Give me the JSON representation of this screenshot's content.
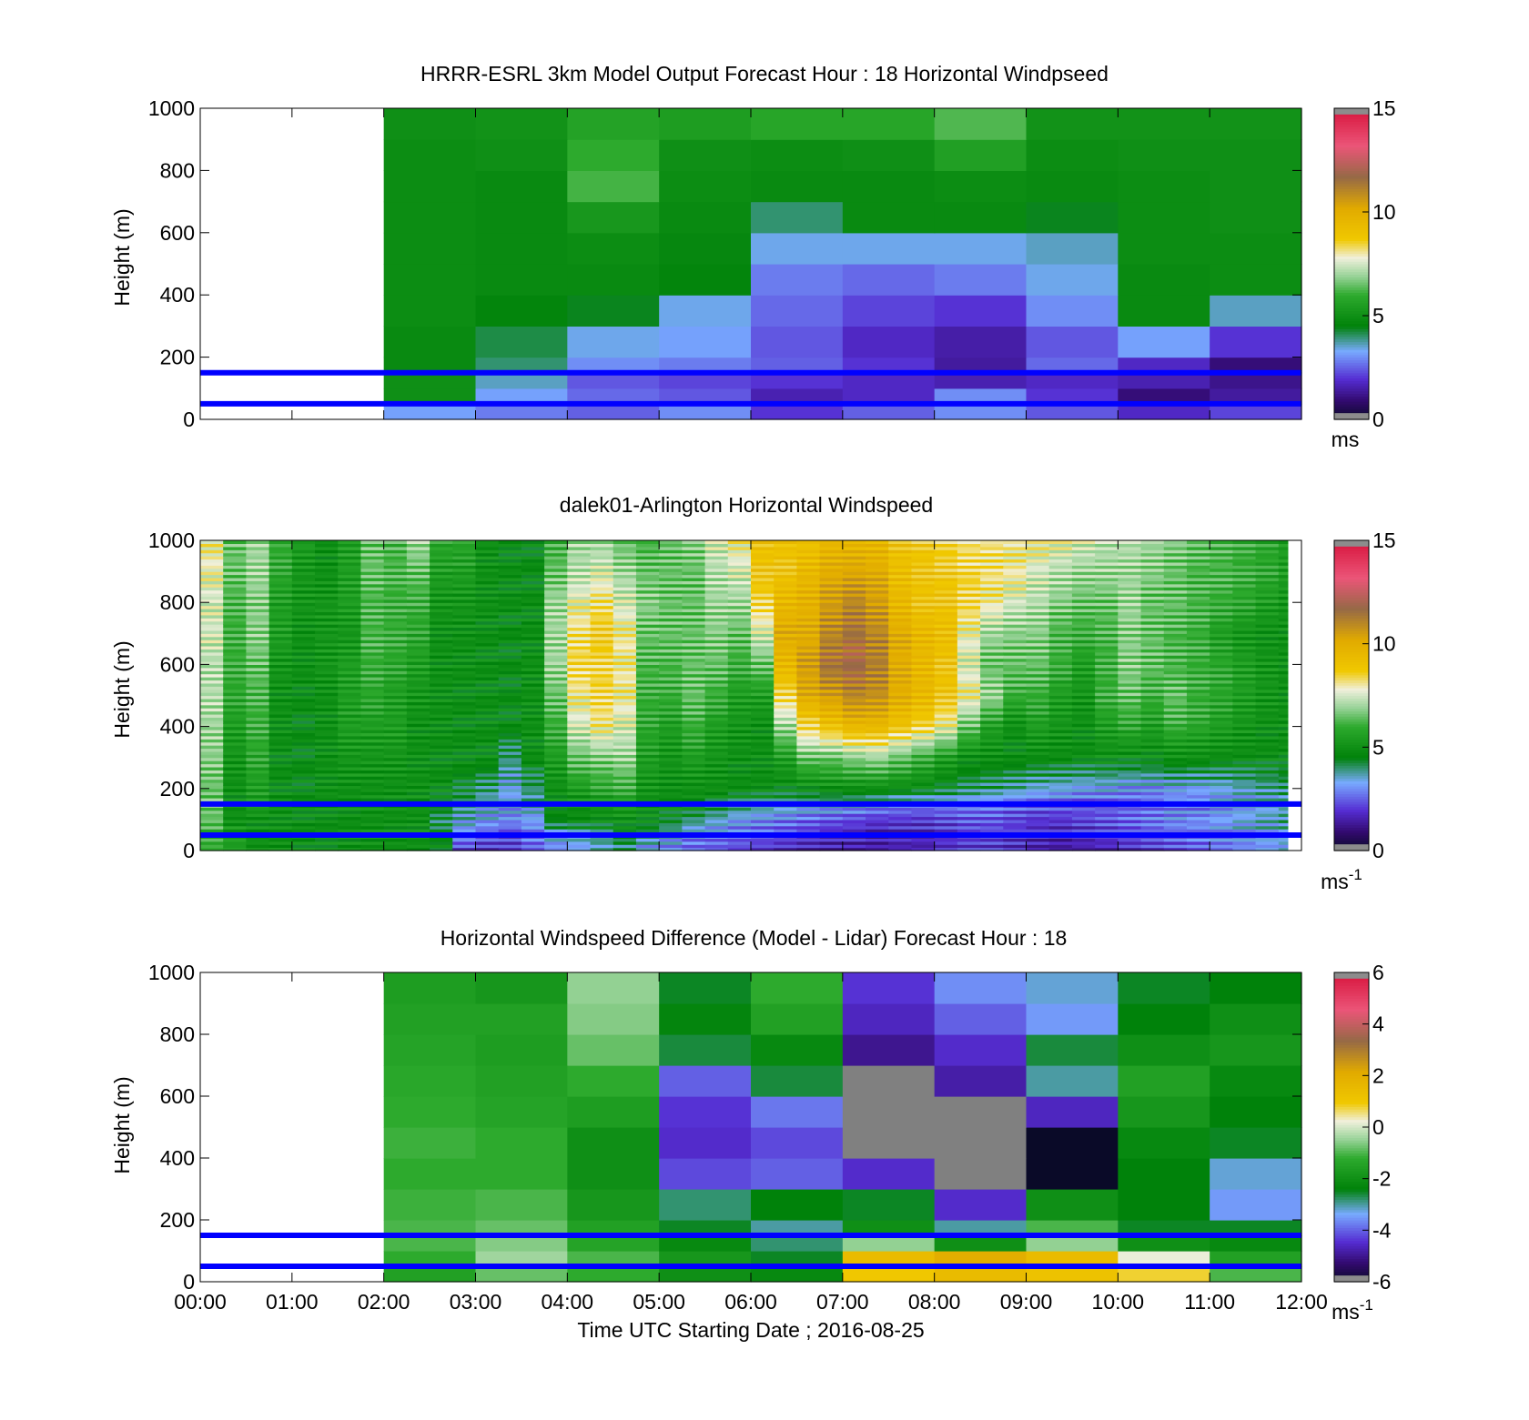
{
  "figure": {
    "xlabel": "Time UTC  Starting Date ; 2016-08-25",
    "x_ticks": [
      "00:00",
      "01:00",
      "02:00",
      "03:00",
      "04:00",
      "05:00",
      "06:00",
      "07:00",
      "08:00",
      "09:00",
      "10:00",
      "11:00",
      "12:00"
    ]
  },
  "chart_data": [
    {
      "type": "heatmap",
      "title": "HRRR-ESRL 3km Model Output   Forecast Hour : 18 Horizontal Windpseed",
      "ylabel": "Height (m)",
      "ylim": [
        0,
        1000
      ],
      "y_ticks": [
        "0",
        "200",
        "400",
        "600",
        "800",
        "1000"
      ],
      "xlim_hours": [
        0,
        12
      ],
      "colorbar": {
        "min": 0,
        "max": 15,
        "ticks": [
          "0",
          "5",
          "10",
          "15"
        ],
        "unit": "ms"
      },
      "reference_lines_m": [
        150,
        50
      ],
      "reference_line_color": "#0000ff",
      "x_bins_hours": [
        [
          2,
          3
        ],
        [
          3,
          4
        ],
        [
          4,
          5
        ],
        [
          5,
          6
        ],
        [
          6,
          7
        ],
        [
          7,
          8
        ],
        [
          8,
          9
        ],
        [
          9,
          10
        ],
        [
          10,
          11
        ],
        [
          11,
          12
        ]
      ],
      "y_bins_m": [
        [
          0,
          50
        ],
        [
          50,
          100
        ],
        [
          100,
          150
        ],
        [
          150,
          200
        ],
        [
          200,
          300
        ],
        [
          300,
          400
        ],
        [
          400,
          500
        ],
        [
          500,
          600
        ],
        [
          600,
          700
        ],
        [
          700,
          800
        ],
        [
          800,
          900
        ],
        [
          900,
          1000
        ]
      ],
      "values": [
        [
          3.2,
          2.8,
          2.5,
          3.0,
          2.0,
          2.5,
          3.0,
          2.4,
          1.8,
          2.2
        ],
        [
          5.0,
          3.2,
          2.6,
          2.4,
          1.6,
          1.8,
          3.0,
          2.0,
          1.0,
          1.4
        ],
        [
          5.0,
          3.6,
          2.4,
          2.2,
          2.0,
          1.8,
          1.6,
          1.8,
          1.6,
          1.2
        ],
        [
          4.8,
          4.0,
          3.0,
          2.8,
          2.5,
          2.0,
          1.4,
          2.6,
          1.8,
          1.0
        ],
        [
          4.8,
          4.2,
          3.4,
          3.2,
          2.4,
          1.8,
          1.5,
          2.4,
          3.2,
          2.0
        ],
        [
          4.9,
          4.6,
          4.4,
          3.4,
          2.6,
          2.2,
          2.0,
          3.0,
          4.8,
          3.6
        ],
        [
          4.9,
          4.8,
          4.8,
          4.6,
          2.8,
          2.6,
          2.8,
          3.4,
          4.8,
          4.9
        ],
        [
          4.9,
          4.8,
          4.9,
          4.7,
          3.4,
          3.4,
          3.4,
          3.6,
          4.9,
          4.9
        ],
        [
          4.9,
          4.8,
          5.3,
          4.8,
          4.0,
          4.8,
          4.8,
          4.4,
          4.9,
          5.0
        ],
        [
          4.9,
          4.8,
          6.2,
          4.9,
          4.8,
          4.8,
          4.9,
          4.8,
          4.9,
          5.0
        ],
        [
          4.9,
          5.0,
          6.0,
          5.0,
          4.9,
          5.0,
          5.6,
          4.9,
          5.0,
          5.0
        ],
        [
          5.0,
          5.1,
          5.7,
          5.5,
          5.8,
          5.8,
          6.3,
          5.1,
          5.1,
          5.1
        ]
      ]
    },
    {
      "type": "heatmap",
      "title": "dalek01-Arlington  Horizontal Windspeed",
      "ylabel": "Height (m)",
      "ylim": [
        0,
        1000
      ],
      "y_ticks": [
        "0",
        "200",
        "400",
        "600",
        "800",
        "1000"
      ],
      "xlim_hours": [
        0,
        12
      ],
      "colorbar": {
        "min": 0,
        "max": 15,
        "ticks": [
          "0",
          "5",
          "10",
          "15"
        ],
        "unit": "ms",
        "unit_exponent": "-1"
      },
      "reference_lines_m": [
        150,
        50
      ],
      "reference_line_color": "#0000ff",
      "data_end_hours": 11.85,
      "x_bin_width_hours": 0.25,
      "y_profile_m": [
        0,
        50,
        100,
        150,
        200,
        300,
        400,
        500,
        600,
        700,
        800,
        900,
        1000
      ],
      "column_profiles": [
        [
          6.0,
          6.0,
          6.5,
          6.5,
          6.5,
          6.8,
          7.0,
          7.2,
          7.2,
          7.5,
          7.5,
          7.8,
          8.0
        ],
        [
          5.5,
          5.5,
          5.0,
          5.0,
          5.0,
          5.2,
          5.5,
          5.8,
          6.0,
          6.0,
          6.2,
          6.5,
          6.5
        ],
        [
          5.0,
          5.0,
          5.0,
          5.5,
          5.5,
          5.8,
          6.0,
          6.2,
          6.5,
          6.8,
          6.8,
          7.0,
          7.0
        ],
        [
          5.0,
          5.0,
          5.0,
          5.0,
          4.9,
          4.9,
          5.0,
          5.0,
          5.2,
          5.5,
          5.5,
          5.8,
          6.0
        ],
        [
          4.9,
          4.9,
          4.9,
          4.9,
          4.8,
          4.8,
          4.8,
          4.9,
          5.0,
          5.0,
          5.2,
          5.2,
          5.5
        ],
        [
          4.9,
          4.9,
          4.9,
          5.0,
          5.0,
          5.0,
          5.0,
          5.0,
          5.2,
          5.2,
          5.2,
          5.0,
          5.0
        ],
        [
          5.0,
          5.0,
          4.9,
          5.0,
          5.0,
          5.2,
          5.5,
          5.5,
          5.5,
          5.2,
          5.5,
          5.5,
          5.5
        ],
        [
          5.0,
          5.0,
          5.0,
          5.0,
          5.0,
          5.2,
          5.5,
          5.8,
          6.0,
          6.2,
          6.2,
          6.5,
          6.5
        ],
        [
          5.0,
          5.0,
          5.0,
          5.0,
          5.0,
          5.2,
          5.5,
          5.5,
          5.8,
          6.0,
          6.0,
          6.2,
          6.2
        ],
        [
          5.0,
          5.0,
          5.0,
          5.0,
          5.0,
          5.0,
          5.0,
          5.2,
          5.5,
          5.8,
          6.0,
          6.5,
          7.0
        ],
        [
          4.8,
          4.5,
          4.2,
          4.5,
          4.9,
          4.9,
          5.0,
          5.0,
          5.0,
          5.0,
          5.2,
          5.5,
          5.8
        ],
        [
          2.0,
          3.0,
          3.5,
          4.0,
          4.5,
          4.9,
          4.9,
          4.9,
          5.0,
          5.0,
          5.2,
          5.5,
          5.8
        ],
        [
          1.8,
          2.5,
          3.2,
          3.5,
          4.0,
          4.9,
          4.9,
          4.9,
          4.9,
          4.9,
          5.0,
          5.0,
          5.0
        ],
        [
          2.0,
          2.2,
          3.0,
          3.2,
          3.4,
          4.0,
          4.8,
          4.8,
          4.8,
          4.8,
          4.9,
          4.9,
          4.8
        ],
        [
          2.4,
          2.8,
          3.2,
          3.6,
          4.0,
          4.9,
          5.0,
          5.0,
          5.0,
          4.9,
          4.9,
          4.8,
          4.8
        ],
        [
          2.8,
          3.5,
          4.5,
          4.9,
          5.0,
          5.5,
          6.0,
          6.5,
          7.0,
          7.0,
          7.0,
          6.5,
          6.0
        ],
        [
          3.0,
          3.8,
          4.8,
          5.0,
          5.5,
          6.5,
          7.5,
          8.0,
          8.5,
          8.2,
          7.8,
          7.2,
          7.0
        ],
        [
          3.5,
          4.0,
          4.9,
          5.2,
          5.8,
          6.8,
          8.0,
          8.5,
          8.5,
          8.8,
          8.2,
          7.5,
          7.0
        ],
        [
          3.8,
          4.5,
          5.0,
          5.5,
          6.0,
          7.0,
          7.5,
          8.0,
          8.0,
          8.0,
          7.5,
          7.0,
          6.5
        ],
        [
          3.0,
          4.0,
          4.9,
          5.0,
          5.2,
          5.5,
          5.8,
          6.0,
          6.2,
          6.5,
          6.8,
          6.5,
          6.2
        ],
        [
          2.8,
          3.5,
          4.5,
          4.9,
          5.0,
          5.2,
          5.5,
          6.0,
          6.2,
          6.5,
          6.5,
          6.5,
          6.5
        ],
        [
          2.5,
          3.0,
          4.0,
          4.9,
          5.0,
          5.5,
          6.0,
          6.5,
          6.5,
          6.5,
          6.5,
          6.5,
          6.8
        ],
        [
          2.4,
          2.8,
          3.6,
          4.5,
          5.0,
          5.2,
          5.5,
          6.0,
          6.5,
          6.8,
          7.0,
          7.2,
          7.5
        ],
        [
          2.2,
          2.6,
          3.2,
          4.2,
          4.9,
          5.0,
          5.2,
          5.5,
          6.0,
          6.5,
          7.0,
          7.5,
          8.0
        ],
        [
          2.0,
          2.4,
          3.0,
          4.0,
          4.9,
          5.0,
          5.0,
          5.5,
          6.5,
          7.5,
          8.5,
          9.0,
          9.0
        ],
        [
          1.8,
          2.2,
          2.8,
          3.8,
          4.8,
          5.5,
          7.0,
          8.5,
          9.5,
          10.0,
          9.5,
          9.0,
          9.0
        ],
        [
          1.6,
          2.0,
          2.6,
          3.6,
          4.9,
          6.5,
          8.5,
          10.0,
          10.5,
          10.0,
          9.8,
          9.5,
          9.0
        ],
        [
          1.5,
          1.8,
          2.4,
          3.5,
          5.0,
          6.5,
          9.0,
          10.5,
          11.5,
          11.0,
          10.5,
          10.0,
          9.5
        ],
        [
          1.4,
          1.8,
          2.2,
          3.4,
          5.0,
          6.8,
          9.5,
          11.0,
          11.8,
          11.5,
          11.0,
          10.2,
          9.5
        ],
        [
          1.4,
          1.6,
          2.0,
          3.2,
          5.0,
          7.0,
          9.5,
          10.8,
          11.2,
          11.0,
          10.5,
          10.0,
          9.5
        ],
        [
          1.5,
          1.8,
          2.0,
          3.0,
          4.9,
          6.5,
          9.0,
          10.0,
          10.0,
          10.0,
          9.5,
          9.2,
          9.0
        ],
        [
          1.5,
          1.8,
          2.0,
          2.8,
          4.8,
          6.0,
          8.5,
          9.5,
          9.5,
          9.5,
          9.0,
          9.0,
          8.8
        ],
        [
          1.8,
          2.0,
          2.2,
          2.8,
          4.5,
          5.5,
          7.8,
          9.0,
          9.0,
          9.2,
          9.0,
          8.8,
          8.5
        ],
        [
          2.0,
          2.2,
          2.4,
          2.8,
          4.2,
          5.0,
          6.5,
          8.0,
          7.5,
          7.8,
          8.5,
          8.5,
          8.2
        ],
        [
          2.0,
          2.2,
          2.4,
          2.8,
          4.0,
          5.0,
          5.5,
          7.0,
          6.5,
          7.0,
          8.0,
          8.2,
          8.2
        ],
        [
          1.8,
          2.0,
          2.2,
          2.6,
          3.8,
          4.9,
          5.0,
          6.0,
          6.5,
          6.8,
          7.5,
          8.0,
          8.0
        ],
        [
          1.5,
          1.8,
          2.0,
          2.5,
          3.5,
          4.9,
          5.5,
          6.0,
          6.5,
          6.8,
          7.2,
          7.5,
          8.0
        ],
        [
          1.4,
          1.6,
          2.0,
          2.5,
          3.4,
          4.9,
          5.2,
          5.5,
          6.0,
          6.2,
          6.8,
          7.2,
          7.8
        ],
        [
          1.5,
          1.8,
          2.2,
          2.4,
          3.2,
          4.9,
          5.0,
          5.2,
          5.5,
          6.0,
          6.5,
          7.0,
          7.5
        ],
        [
          1.6,
          2.0,
          2.4,
          2.4,
          3.2,
          5.0,
          5.5,
          6.0,
          6.0,
          6.2,
          6.5,
          7.0,
          7.2
        ],
        [
          1.8,
          2.2,
          2.6,
          2.5,
          3.0,
          4.9,
          5.8,
          6.5,
          6.8,
          6.8,
          7.0,
          7.0,
          7.2
        ],
        [
          2.0,
          2.4,
          2.8,
          2.6,
          3.0,
          4.9,
          5.5,
          6.0,
          6.5,
          6.5,
          6.5,
          6.8,
          7.0
        ],
        [
          2.2,
          2.6,
          3.0,
          2.8,
          3.2,
          5.0,
          6.0,
          6.5,
          6.2,
          6.2,
          6.5,
          6.5,
          6.8
        ],
        [
          2.4,
          2.8,
          3.0,
          2.8,
          3.2,
          5.0,
          5.8,
          6.0,
          6.0,
          6.0,
          6.2,
          6.2,
          6.5
        ],
        [
          2.6,
          3.0,
          3.2,
          3.0,
          3.4,
          4.9,
          5.5,
          5.8,
          5.8,
          5.5,
          6.0,
          6.2,
          6.2
        ],
        [
          2.8,
          3.2,
          3.4,
          3.2,
          3.6,
          4.9,
          5.2,
          5.5,
          5.5,
          5.2,
          5.8,
          6.0,
          6.0
        ],
        [
          3.0,
          3.4,
          3.6,
          3.4,
          3.8,
          4.9,
          5.0,
          5.2,
          5.2,
          5.0,
          5.5,
          5.8,
          5.8
        ],
        [
          3.2,
          3.6,
          3.8,
          3.6,
          4.0,
          4.9,
          5.0,
          5.0,
          5.0,
          5.0,
          5.2,
          5.5,
          5.5
        ]
      ]
    },
    {
      "type": "heatmap",
      "title": "Horizontal Windspeed Difference (Model - Lidar) Forecast Hour : 18",
      "ylabel": "Height (m)",
      "ylim": [
        0,
        1000
      ],
      "y_ticks": [
        "0",
        "200",
        "400",
        "600",
        "800",
        "1000"
      ],
      "xlim_hours": [
        0,
        12
      ],
      "xlabel_shown": true,
      "colorbar": {
        "min": -6,
        "max": 6,
        "ticks": [
          "-6",
          "-4",
          "-2",
          "0",
          "2",
          "4",
          "6"
        ],
        "unit": "ms",
        "unit_exponent": "-1"
      },
      "reference_lines_m": [
        150,
        50
      ],
      "reference_line_color": "#0000ff",
      "x_bins_hours": [
        [
          2,
          3
        ],
        [
          3,
          4
        ],
        [
          4,
          5
        ],
        [
          5,
          6
        ],
        [
          6,
          7
        ],
        [
          7,
          8
        ],
        [
          8,
          9
        ],
        [
          9,
          10
        ],
        [
          10,
          11
        ],
        [
          11,
          12
        ]
      ],
      "y_bins_m": [
        [
          0,
          50
        ],
        [
          50,
          100
        ],
        [
          100,
          150
        ],
        [
          150,
          200
        ],
        [
          200,
          300
        ],
        [
          300,
          400
        ],
        [
          400,
          500
        ],
        [
          500,
          600
        ],
        [
          600,
          700
        ],
        [
          700,
          800
        ],
        [
          800,
          900
        ],
        [
          900,
          1000
        ]
      ],
      "values": [
        [
          -1.5,
          -0.8,
          -1.2,
          -2.0,
          -2.2,
          1.0,
          1.5,
          1.2,
          0.8,
          -1.0
        ],
        [
          -1.2,
          -0.4,
          -1.0,
          -1.8,
          -2.5,
          1.5,
          2.0,
          1.5,
          0.2,
          -1.5
        ],
        [
          -1.0,
          -0.6,
          -1.4,
          -2.2,
          -2.8,
          -0.5,
          -2.0,
          -0.5,
          -2.0,
          -2.2
        ],
        [
          -1.0,
          -0.8,
          -1.5,
          -2.5,
          -3.0,
          -2.0,
          -3.0,
          -1.0,
          -2.5,
          -2.5
        ],
        [
          -1.1,
          -1.0,
          -1.8,
          -2.8,
          -2.4,
          -2.5,
          -4.5,
          -2.0,
          -2.4,
          -3.5
        ],
        [
          -1.2,
          -1.2,
          -2.0,
          -4.2,
          -4.0,
          -4.5,
          null,
          -6.0,
          -2.4,
          -3.2
        ],
        [
          -1.1,
          -1.2,
          -2.0,
          -4.5,
          -4.2,
          null,
          null,
          -6.0,
          -2.2,
          -2.5
        ],
        [
          -1.2,
          -1.4,
          -1.6,
          -4.4,
          -3.8,
          null,
          null,
          -4.6,
          -1.8,
          -2.4
        ],
        [
          -1.3,
          -1.5,
          -1.2,
          -4.0,
          -2.6,
          null,
          -4.8,
          -3.0,
          -1.5,
          -2.2
        ],
        [
          -1.4,
          -1.6,
          -0.8,
          -2.6,
          -2.2,
          -5.0,
          -4.5,
          -2.6,
          -2.0,
          -1.8
        ],
        [
          -1.5,
          -1.5,
          -0.6,
          -2.3,
          -1.5,
          -4.6,
          -4.0,
          -3.5,
          -2.4,
          -2.0
        ],
        [
          -1.6,
          -1.8,
          -0.5,
          -2.5,
          -1.2,
          -4.4,
          -3.6,
          -3.2,
          -2.5,
          -2.4
        ]
      ]
    }
  ]
}
